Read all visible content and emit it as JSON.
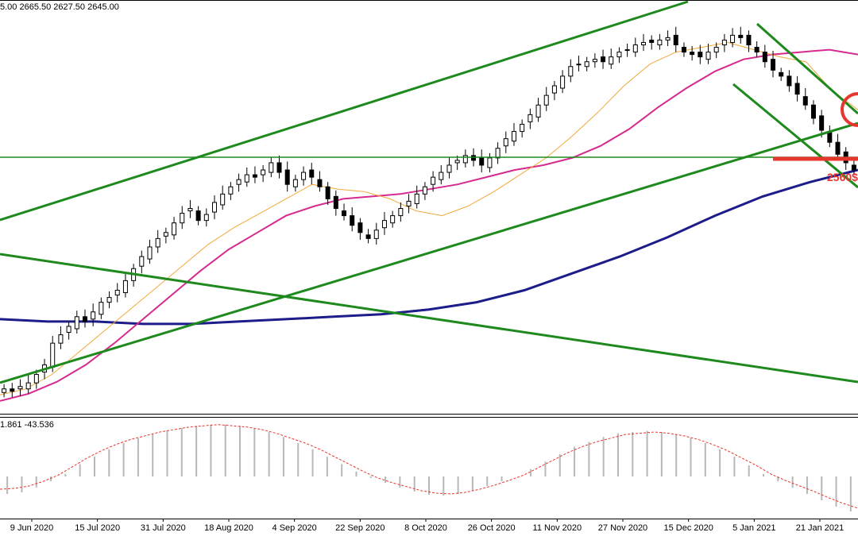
{
  "header": {
    "ohlc_text": "5.00 2665.50 2627.50 2645.00"
  },
  "oscillator": {
    "values_text": "1.861 -43.536"
  },
  "annotation": {
    "level_label": "2560$",
    "colors": {
      "level": "#e8352d",
      "circle": "#e8352d"
    }
  },
  "chart_data": [
    {
      "type": "candlestick",
      "title": "",
      "x_tick_labels": [
        "9 Jun 2020",
        "15 Jul 2020",
        "31 Jul 2020",
        "18 Aug 2020",
        "4 Sep 2020",
        "22 Sep 2020",
        "8 Oct 2020",
        "26 Oct 2020",
        "11 Nov 2020",
        "27 Nov 2020",
        "15 Dec 2020",
        "5 Jan 2021",
        "21 Jan 2021"
      ],
      "ylim": [
        2360,
        2700
      ],
      "grid": false,
      "series": [
        {
          "kind": "price-path",
          "values": [
            2380,
            2378,
            2382,
            2385,
            2392,
            2400,
            2418,
            2425,
            2432,
            2440,
            2436,
            2444,
            2452,
            2456,
            2462,
            2470,
            2480,
            2490,
            2498,
            2505,
            2510,
            2518,
            2526,
            2530,
            2520,
            2525,
            2535,
            2542,
            2548,
            2554,
            2558,
            2556,
            2562,
            2568,
            2560,
            2550,
            2554,
            2560,
            2556,
            2548,
            2538,
            2530,
            2524,
            2516,
            2510,
            2505,
            2512,
            2520,
            2524,
            2530,
            2536,
            2542,
            2548,
            2556,
            2560,
            2566,
            2570,
            2574,
            2570,
            2566,
            2572,
            2580,
            2588,
            2594,
            2600,
            2608,
            2616,
            2624,
            2632,
            2640,
            2648,
            2650,
            2652,
            2654,
            2652,
            2656,
            2660,
            2662,
            2666,
            2668,
            2668,
            2670,
            2672,
            2666,
            2660,
            2658,
            2656,
            2660,
            2664,
            2670,
            2674,
            2672,
            2666,
            2660,
            2652,
            2645,
            2640,
            2632,
            2625,
            2616,
            2605,
            2595,
            2585,
            2575,
            2568,
            2562
          ]
        },
        {
          "name": "",
          "kind": "ma-fast",
          "color": "#f2a93b",
          "values": [
            2375,
            2380,
            2392,
            2410,
            2428,
            2446,
            2464,
            2482,
            2500,
            2514,
            2526,
            2538,
            2550,
            2546,
            2544,
            2538,
            2528,
            2524,
            2532,
            2544,
            2558,
            2572,
            2590,
            2610,
            2632,
            2650,
            2660,
            2664,
            2668,
            2662,
            2656,
            2652,
            2628,
            2612
          ]
        },
        {
          "name": "",
          "kind": "ma-mid",
          "color": "#d62a8f",
          "values": [
            2370,
            2376,
            2386,
            2400,
            2418,
            2438,
            2458,
            2478,
            2496,
            2510,
            2524,
            2532,
            2538,
            2540,
            2542,
            2546,
            2550,
            2556,
            2562,
            2566,
            2572,
            2582,
            2596,
            2614,
            2630,
            2644,
            2654,
            2658,
            2660,
            2662,
            2658
          ]
        },
        {
          "name": "",
          "kind": "ma-slow",
          "color": "#1c1c8a",
          "values": [
            2438,
            2436,
            2436,
            2434,
            2434,
            2436,
            2438,
            2440,
            2442,
            2446,
            2452,
            2462,
            2476,
            2490,
            2506,
            2524,
            2540,
            2552,
            2562
          ]
        }
      ]
    },
    {
      "type": "bar",
      "title": "",
      "ylim": [
        -50,
        45
      ],
      "series": [
        {
          "name": "",
          "kind": "histogram",
          "color": "#b8b8b8",
          "values": [
            -22,
            -20,
            -14,
            -6,
            2,
            10,
            16,
            22,
            27,
            31,
            34,
            37,
            39,
            41,
            42,
            42,
            41,
            39,
            36,
            32,
            27,
            22,
            16,
            10,
            4,
            -2,
            -8,
            -14,
            -19,
            -23,
            -24,
            -22,
            -18,
            -12,
            -6,
            0,
            6,
            12,
            18,
            24,
            28,
            32,
            35,
            36,
            37,
            36,
            34,
            31,
            27,
            22,
            16,
            9,
            2,
            -6,
            -14,
            -22,
            -30,
            -38,
            -44
          ]
        },
        {
          "name": "",
          "kind": "signal",
          "color": "#e8352d",
          "values": [
            -16,
            -15,
            -12,
            -6,
            1,
            8,
            15,
            21,
            26,
            30,
            33,
            36,
            38,
            40,
            41,
            42,
            41,
            40,
            38,
            35,
            31,
            27,
            22,
            16,
            10,
            4,
            -2,
            -8,
            -13,
            -18,
            -21,
            -22,
            -20,
            -16,
            -11,
            -5,
            1,
            7,
            13,
            19,
            24,
            28,
            31,
            34,
            35,
            36,
            35,
            33,
            30,
            26,
            21,
            15,
            9,
            2,
            -5,
            -12,
            -19,
            -27,
            -34,
            -40
          ]
        }
      ]
    }
  ]
}
